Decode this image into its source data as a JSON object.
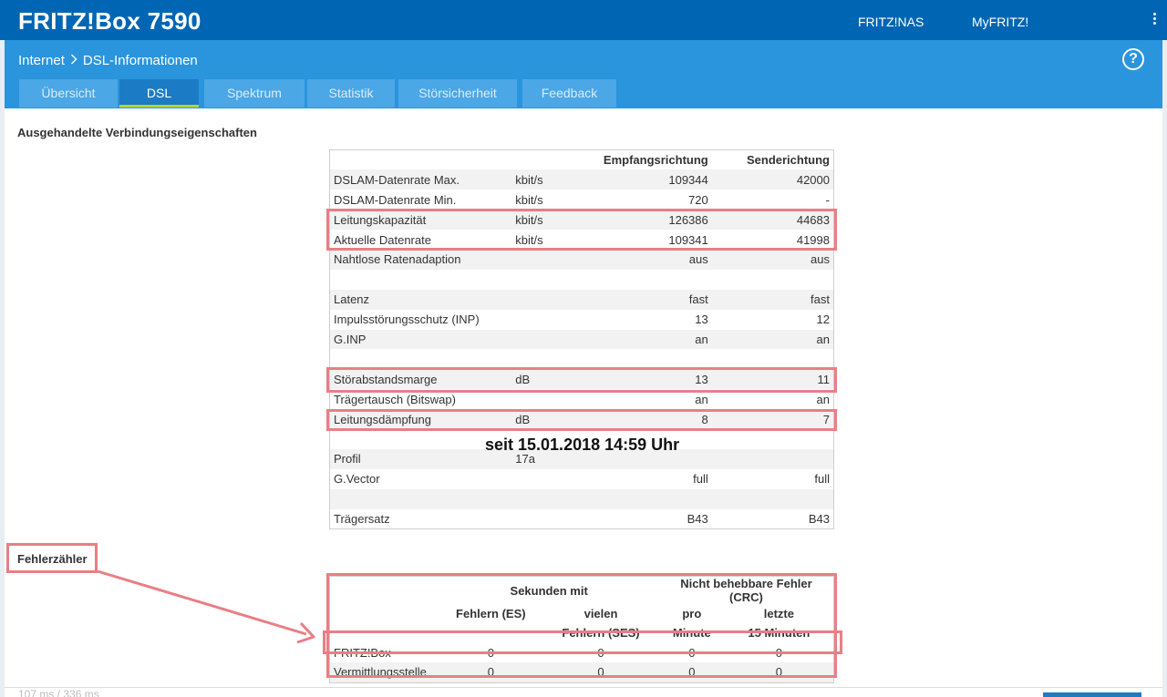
{
  "header": {
    "brand": "FRITZ!Box 7590",
    "links": [
      "FRITZ!NAS",
      "MyFRITZ!"
    ]
  },
  "breadcrumb": {
    "parent": "Internet",
    "current": "DSL-Informationen"
  },
  "help_symbol": "?",
  "tabs": [
    "Übersicht",
    "DSL",
    "Spektrum",
    "Statistik",
    "Störsicherheit",
    "Feedback"
  ],
  "active_tab": "DSL",
  "properties": {
    "title": "Ausgehandelte Verbindungseigenschaften",
    "col_down": "Empfangsrichtung",
    "col_up": "Senderichtung",
    "rows": [
      {
        "label": "DSLAM-Datenrate Max.",
        "unit": "kbit/s",
        "down": "109344",
        "up": "42000"
      },
      {
        "label": "DSLAM-Datenrate Min.",
        "unit": "kbit/s",
        "down": "720",
        "up": "-"
      },
      {
        "label": "Leitungskapazität",
        "unit": "kbit/s",
        "down": "126386",
        "up": "44683"
      },
      {
        "label": "Aktuelle Datenrate",
        "unit": "kbit/s",
        "down": "109341",
        "up": "41998"
      },
      {
        "label": "Nahtlose Ratenadaption",
        "unit": "",
        "down": "aus",
        "up": "aus"
      },
      {
        "label": "",
        "unit": "",
        "down": "",
        "up": ""
      },
      {
        "label": "Latenz",
        "unit": "",
        "down": "fast",
        "up": "fast"
      },
      {
        "label": "Impulsstörungsschutz (INP)",
        "unit": "",
        "down": "13",
        "up": "12"
      },
      {
        "label": "G.INP",
        "unit": "",
        "down": "an",
        "up": "an"
      },
      {
        "label": "",
        "unit": "",
        "down": "",
        "up": ""
      },
      {
        "label": "Störabstandsmarge",
        "unit": "dB",
        "down": "13",
        "up": "11"
      },
      {
        "label": "Trägertausch (Bitswap)",
        "unit": "",
        "down": "an",
        "up": "an"
      },
      {
        "label": "Leitungsdämpfung",
        "unit": "dB",
        "down": "8",
        "up": "7"
      },
      {
        "label": "",
        "unit": "",
        "down": "",
        "up": ""
      },
      {
        "label": "Profil",
        "unit": "17a",
        "down": "",
        "up": ""
      },
      {
        "label": "G.Vector",
        "unit": "",
        "down": "full",
        "up": "full"
      },
      {
        "label": "",
        "unit": "",
        "down": "",
        "up": ""
      },
      {
        "label": "Trägersatz",
        "unit": "",
        "down": "B43",
        "up": "B43"
      }
    ]
  },
  "since": "seit 15.01.2018 14:59 Uhr",
  "errors": {
    "title": "Fehlerzähler",
    "group1": "Sekunden mit",
    "group2": "Nicht behebbare Fehler (CRC)",
    "col_es": "Fehlern (ES)",
    "col_ses_1": "vielen",
    "col_ses_2": "Fehlern (SES)",
    "col_pm_1": "pro",
    "col_pm_2": "Minute",
    "col_l15_1": "letzte",
    "col_l15_2": "15 Minuten",
    "rows": [
      {
        "label": "FRITZ!Box",
        "es": "0",
        "ses": "0",
        "pm": "0",
        "l15": "0"
      },
      {
        "label": "Vermittlungsstelle",
        "es": "0",
        "ses": "0",
        "pm": "0",
        "l15": "0"
      }
    ]
  },
  "footer": {
    "timing": "107 ms / 336 ms"
  }
}
